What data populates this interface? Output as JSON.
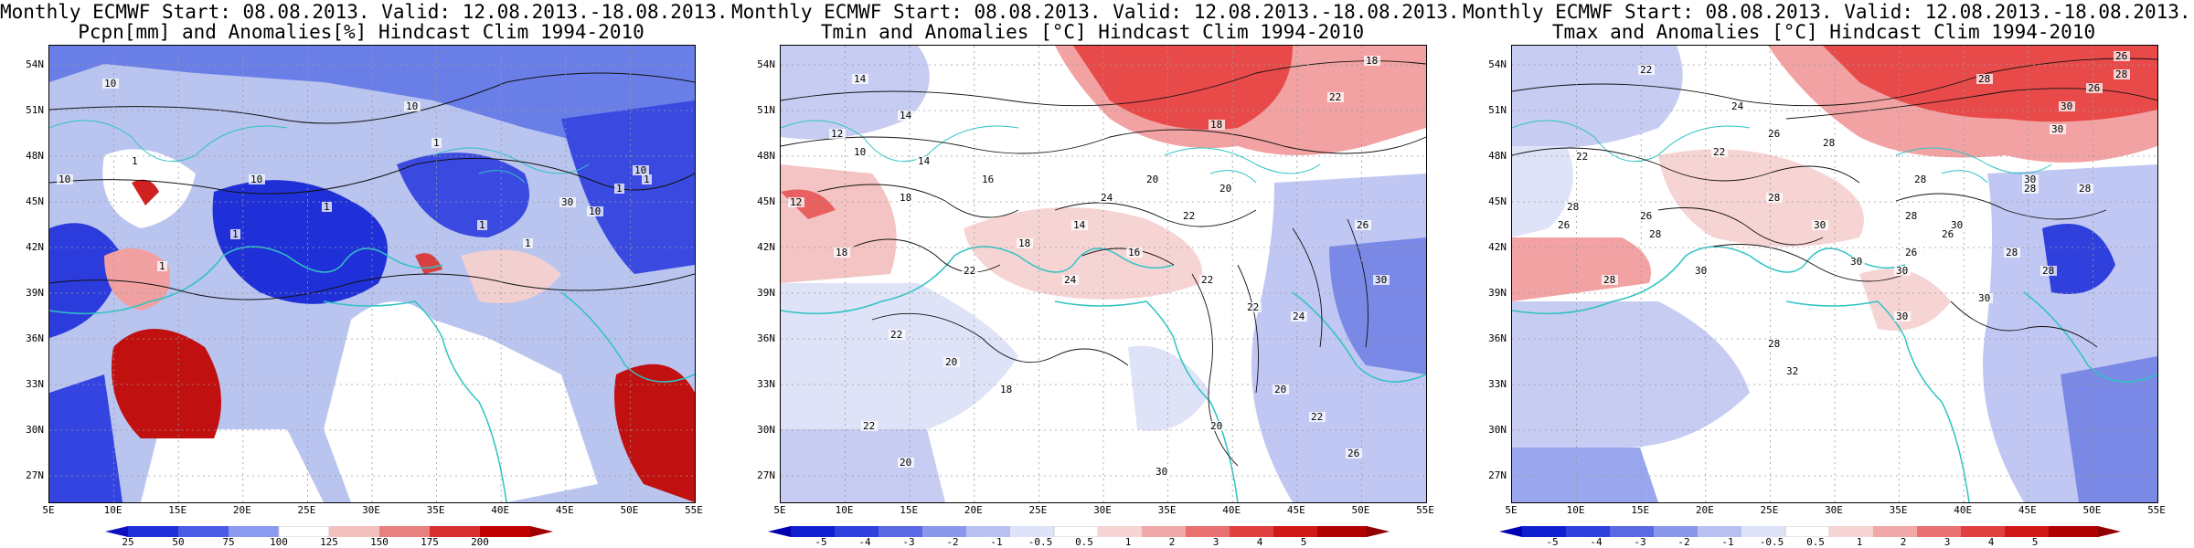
{
  "panels": [
    {
      "title1": "Monthly ECMWF Start: 08.08.2013. Valid: 12.08.2013.-18.08.2013.",
      "title2": "Pcpn[mm] and Anomalies[%] Hindcast Clim 1994-2010",
      "scheme": "precip",
      "colorbar": [
        "25",
        "50",
        "75",
        "100",
        "125",
        "150",
        "175",
        "200"
      ],
      "contour_labels": [
        "10",
        "10",
        "10",
        "10",
        "1",
        "1",
        "1",
        "10",
        "30",
        "10",
        "1",
        "1",
        "1",
        "1",
        "1",
        "1"
      ]
    },
    {
      "title1": "Monthly ECMWF Start: 08.08.2013. Valid: 12.08.2013.-18.08.2013.",
      "title2": "Tmin and Anomalies [°C] Hindcast Clim 1994-2010",
      "scheme": "tmin",
      "colorbar": [
        "-5",
        "-4",
        "-3",
        "-2",
        "-1",
        "-0.5",
        "0.5",
        "1",
        "2",
        "3",
        "4",
        "5"
      ],
      "contour_labels": [
        "18",
        "14",
        "14",
        "22",
        "18",
        "12",
        "10",
        "12",
        "18",
        "14",
        "16",
        "20",
        "24",
        "20",
        "22",
        "14",
        "18",
        "16",
        "18",
        "22",
        "24",
        "22",
        "20",
        "18",
        "22",
        "20",
        "22",
        "22",
        "24",
        "26",
        "30",
        "20",
        "22",
        "20",
        "26",
        "30"
      ]
    },
    {
      "title1": "Monthly ECMWF Start: 08.08.2013. Valid: 12.08.2013.-18.08.2013.",
      "title2": "Tmax and Anomalies [°C] Hindcast Clim 1994-2010",
      "scheme": "tmax",
      "colorbar": [
        "-5",
        "-4",
        "-3",
        "-2",
        "-1",
        "-0.5",
        "0.5",
        "1",
        "2",
        "3",
        "4",
        "5"
      ],
      "contour_labels": [
        "26",
        "28",
        "22",
        "28",
        "26",
        "24",
        "30",
        "22",
        "26",
        "28",
        "22",
        "30",
        "28",
        "26",
        "28",
        "30",
        "28",
        "26",
        "30",
        "28",
        "28",
        "26",
        "30",
        "30",
        "28",
        "28",
        "30",
        "30",
        "28",
        "32",
        "26",
        "28",
        "30",
        "28",
        "30",
        "28"
      ]
    }
  ],
  "lat_labels": [
    "54N",
    "51N",
    "48N",
    "45N",
    "42N",
    "39N",
    "36N",
    "33N",
    "30N",
    "27N"
  ],
  "lon_labels": [
    "5E",
    "10E",
    "15E",
    "20E",
    "25E",
    "30E",
    "35E",
    "40E",
    "45E",
    "50E",
    "55E"
  ],
  "colors": {
    "coast": "#2fc3c3",
    "contour": "#111111",
    "grid": "#9a9a9a"
  }
}
